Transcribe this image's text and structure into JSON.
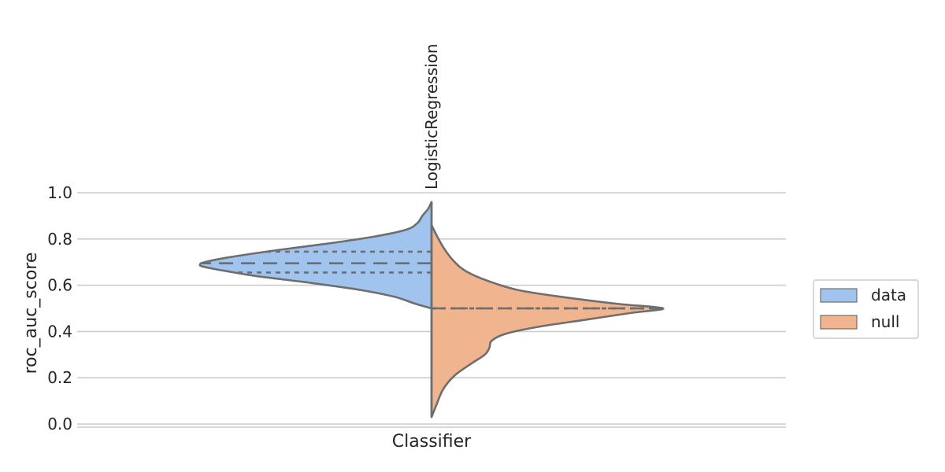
{
  "chart_data": {
    "type": "violin",
    "xlabel": "Classifier",
    "ylabel": "roc_auc_score",
    "categories": [
      "LogisticRegression"
    ],
    "ylim": [
      0.0,
      1.0
    ],
    "yticks": [
      0.0,
      0.2,
      0.4,
      0.6,
      0.8,
      1.0
    ],
    "ytick_labels": [
      "0.0",
      "0.2",
      "0.4",
      "0.6",
      "0.8",
      "1.0"
    ],
    "grid": "horizontal",
    "legend_placement": "right",
    "series": [
      {
        "name": "data",
        "color": "#a1c4ee",
        "side": "left",
        "range": [
          0.5,
          0.96
        ],
        "quartiles": [
          0.655,
          0.695,
          0.745
        ],
        "density": [
          [
            0.5,
            0.0
          ],
          [
            0.52,
            0.07
          ],
          [
            0.55,
            0.16
          ],
          [
            0.58,
            0.31
          ],
          [
            0.61,
            0.52
          ],
          [
            0.64,
            0.76
          ],
          [
            0.66,
            0.88
          ],
          [
            0.68,
            0.985
          ],
          [
            0.69,
            1.0
          ],
          [
            0.7,
            0.98
          ],
          [
            0.72,
            0.88
          ],
          [
            0.75,
            0.68
          ],
          [
            0.78,
            0.45
          ],
          [
            0.81,
            0.25
          ],
          [
            0.84,
            0.11
          ],
          [
            0.87,
            0.06
          ],
          [
            0.9,
            0.04
          ],
          [
            0.93,
            0.015
          ],
          [
            0.96,
            0.0
          ]
        ]
      },
      {
        "name": "null",
        "color": "#f0b48e",
        "side": "right",
        "range": [
          0.03,
          0.86
        ],
        "quartiles": [
          0.5,
          0.5,
          0.5
        ],
        "density": [
          [
            0.03,
            0.0
          ],
          [
            0.08,
            0.02
          ],
          [
            0.15,
            0.05
          ],
          [
            0.21,
            0.1
          ],
          [
            0.26,
            0.17
          ],
          [
            0.3,
            0.23
          ],
          [
            0.33,
            0.25
          ],
          [
            0.36,
            0.26
          ],
          [
            0.39,
            0.32
          ],
          [
            0.42,
            0.46
          ],
          [
            0.45,
            0.66
          ],
          [
            0.48,
            0.86
          ],
          [
            0.5,
            1.0
          ],
          [
            0.52,
            0.8
          ],
          [
            0.55,
            0.56
          ],
          [
            0.58,
            0.37
          ],
          [
            0.62,
            0.24
          ],
          [
            0.66,
            0.15
          ],
          [
            0.7,
            0.1
          ],
          [
            0.75,
            0.06
          ],
          [
            0.8,
            0.03
          ],
          [
            0.86,
            0.0
          ]
        ]
      }
    ]
  }
}
